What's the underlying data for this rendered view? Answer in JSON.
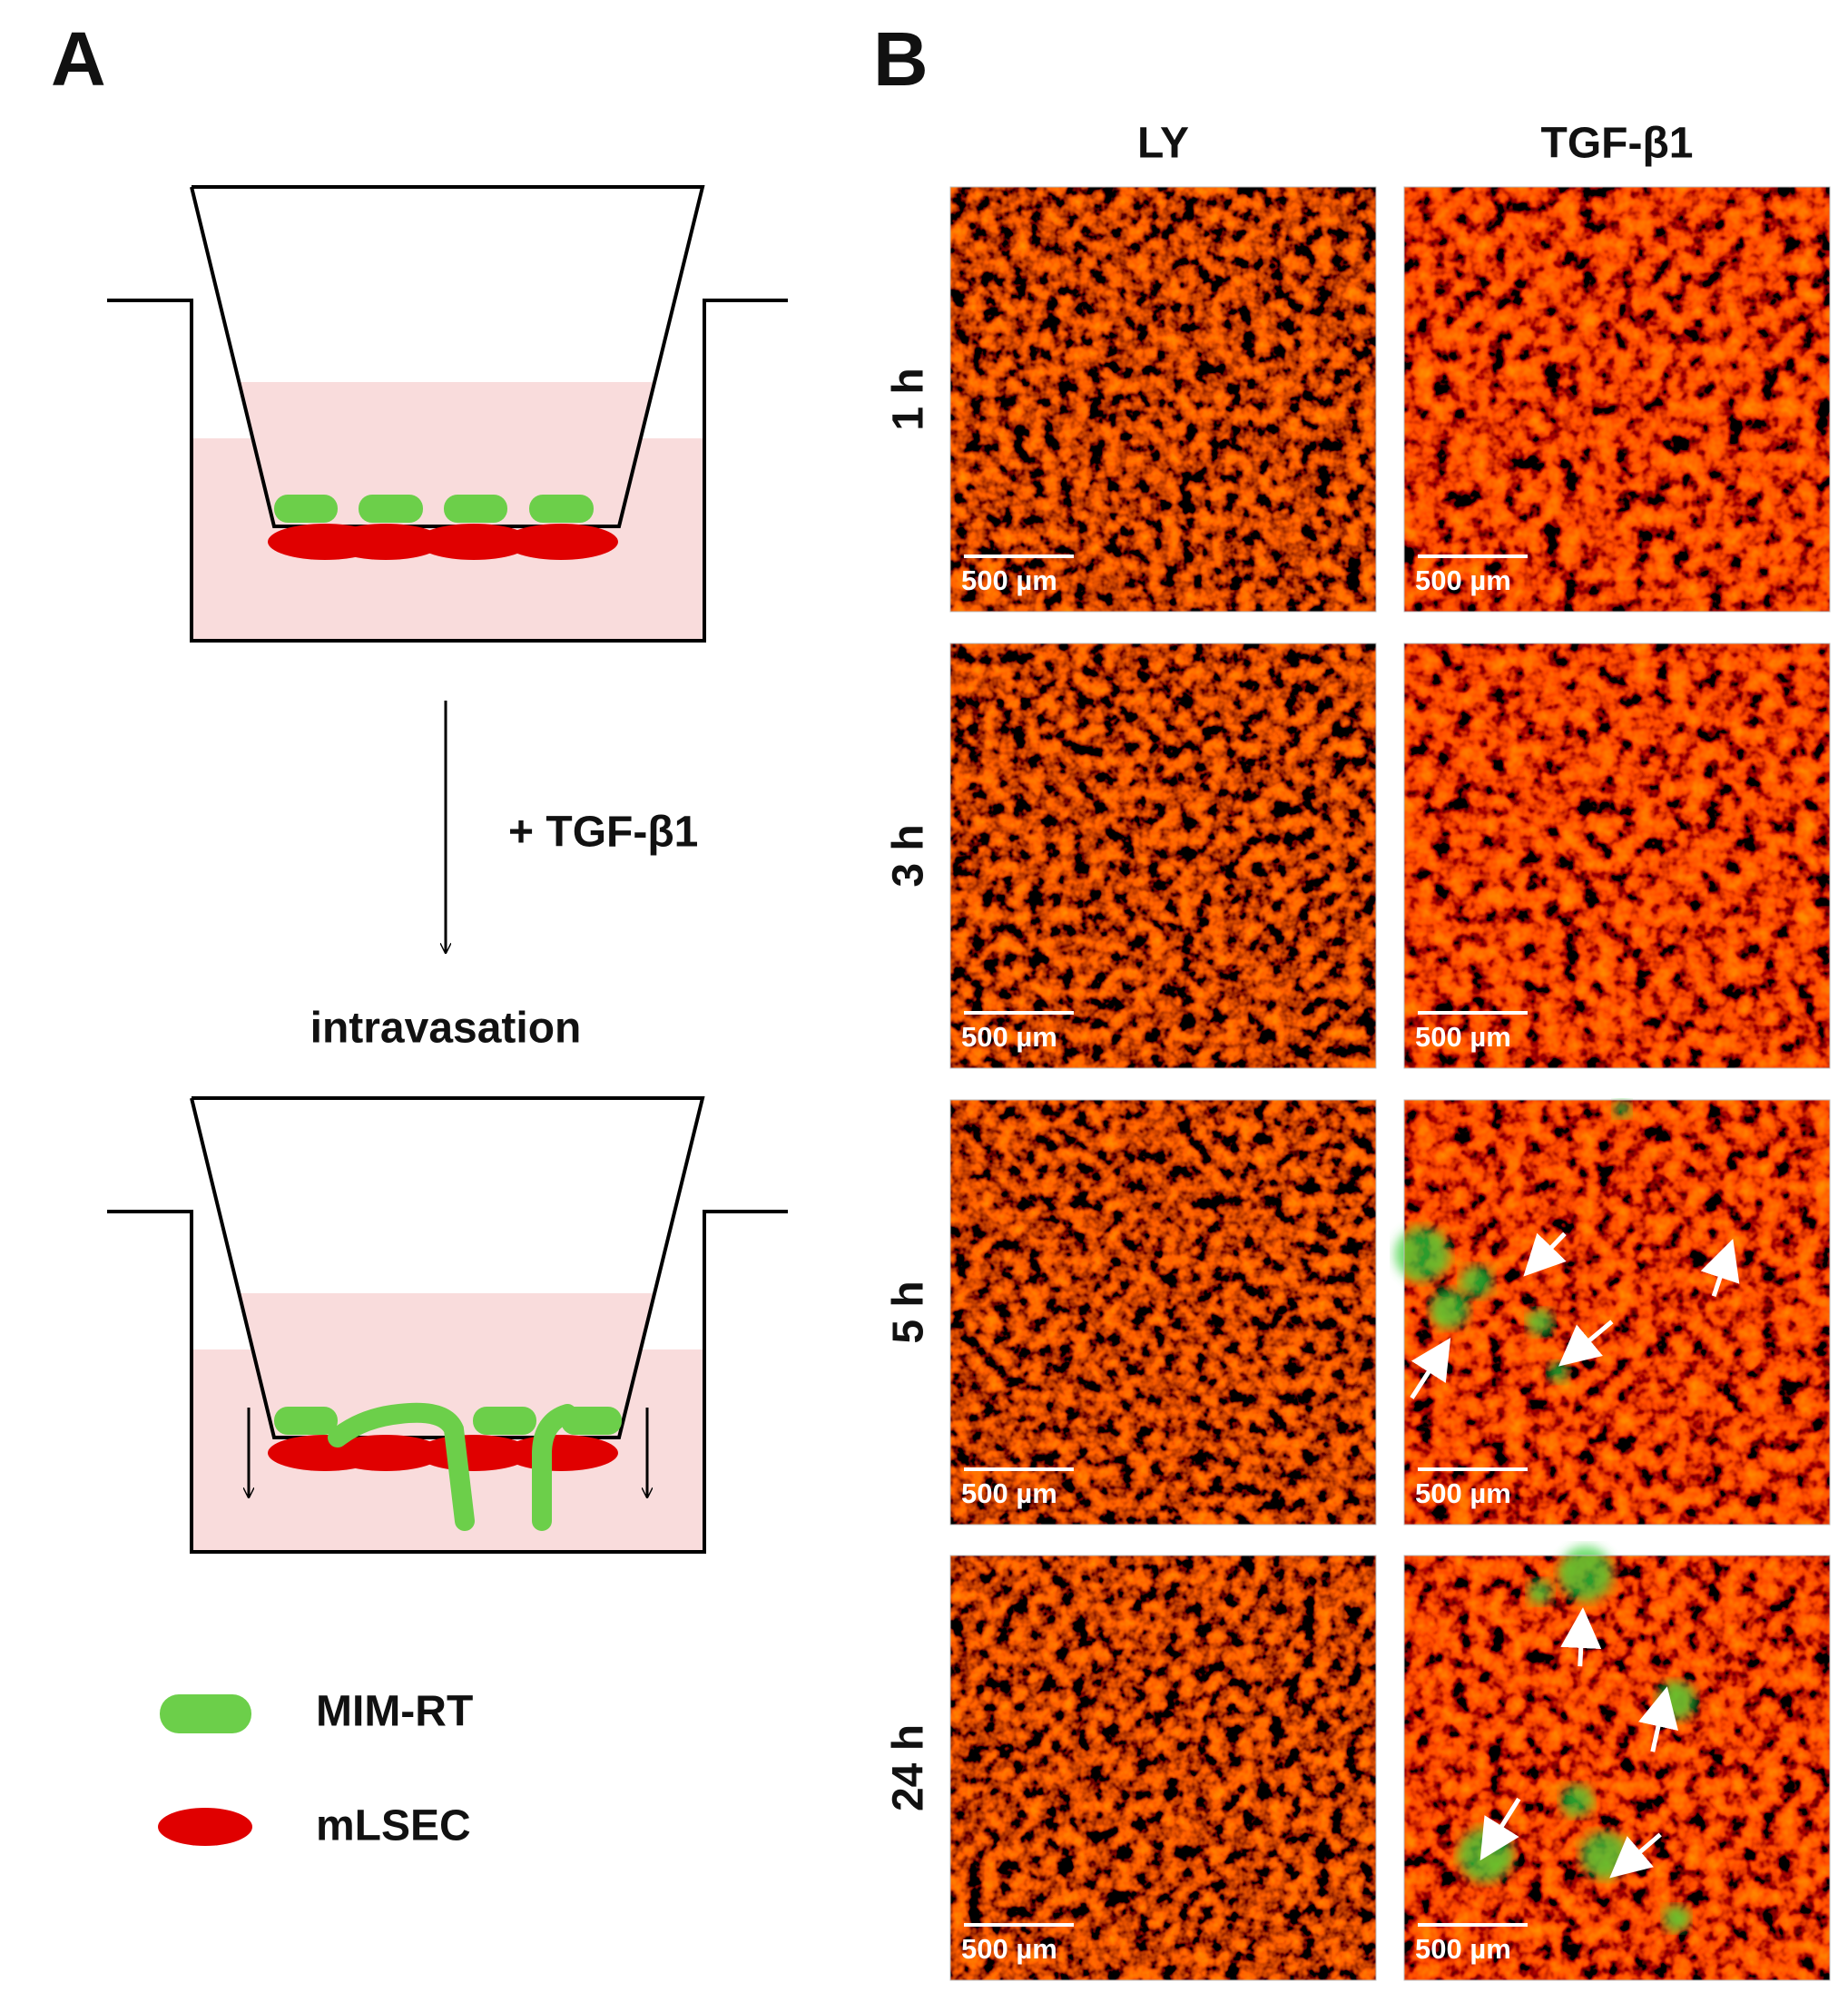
{
  "panel_a": {
    "label": "A",
    "treatment": "+ TGF-β1",
    "process": "intravasation",
    "legend": [
      {
        "label": "MIM-RT"
      },
      {
        "label": "mLSEC"
      }
    ]
  },
  "panel_b": {
    "label": "B",
    "columns": [
      "LY",
      "TGF-β1"
    ],
    "rows": [
      "1 h",
      "3 h",
      "5 h",
      "24 h"
    ],
    "scale_bar": "500 µm"
  }
}
